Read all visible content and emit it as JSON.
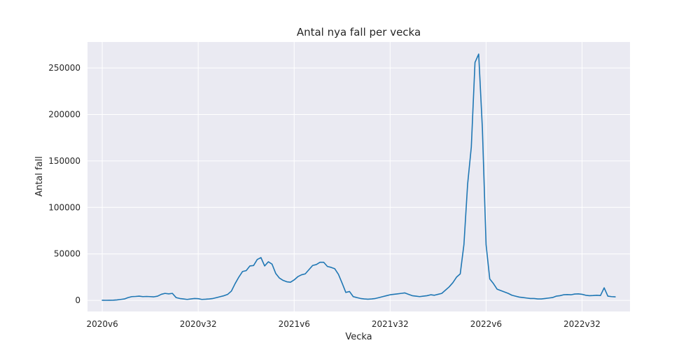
{
  "chart_data": {
    "type": "line",
    "title": "Antal nya fall per vecka",
    "xlabel": "Vecka",
    "ylabel": "Antal fall",
    "grid": true,
    "xlim": [
      -4,
      143
    ],
    "ylim": [
      -12000,
      278000
    ],
    "x_ticks": [
      {
        "index": 0,
        "label": "2020v6"
      },
      {
        "index": 26,
        "label": "2020v32"
      },
      {
        "index": 52,
        "label": "2021v6"
      },
      {
        "index": 78,
        "label": "2021v32"
      },
      {
        "index": 104,
        "label": "2022v6"
      },
      {
        "index": 130,
        "label": "2022v32"
      }
    ],
    "y_ticks": [
      0,
      50000,
      100000,
      150000,
      200000,
      250000
    ],
    "series": [
      {
        "color": "#1f77b4",
        "values": [
          100,
          50,
          100,
          200,
          500,
          1000,
          1500,
          3000,
          4000,
          4200,
          4500,
          4000,
          4200,
          4000,
          3800,
          4500,
          6500,
          7500,
          7000,
          7500,
          3000,
          2000,
          1500,
          1000,
          1500,
          2000,
          1800,
          1000,
          1200,
          1500,
          2000,
          3000,
          4000,
          5000,
          6500,
          10000,
          18000,
          25000,
          31000,
          32000,
          37000,
          37500,
          44000,
          46000,
          37000,
          41500,
          39000,
          29000,
          24000,
          21500,
          20000,
          19500,
          22000,
          25500,
          27500,
          28500,
          33000,
          37500,
          38500,
          41000,
          41000,
          36500,
          35500,
          34000,
          28000,
          18500,
          8500,
          9500,
          4000,
          3000,
          2000,
          1500,
          1200,
          1500,
          2000,
          3000,
          4000,
          5000,
          6000,
          6500,
          7000,
          7500,
          8000,
          6500,
          5000,
          4500,
          4000,
          4500,
          5000,
          6000,
          5500,
          6500,
          7500,
          11000,
          14500,
          19000,
          25000,
          28500,
          60000,
          125000,
          165000,
          256000,
          265000,
          185000,
          60000,
          23000,
          18000,
          12000,
          10500,
          9000,
          7500,
          5500,
          4500,
          3500,
          3000,
          2500,
          2000,
          2000,
          1500,
          1500,
          2000,
          2500,
          3000,
          4500,
          5000,
          6000,
          6200,
          6000,
          6800,
          7000,
          6500,
          5500,
          5000,
          5200,
          5500,
          5200,
          13500,
          4500,
          4000,
          3800
        ]
      }
    ]
  }
}
